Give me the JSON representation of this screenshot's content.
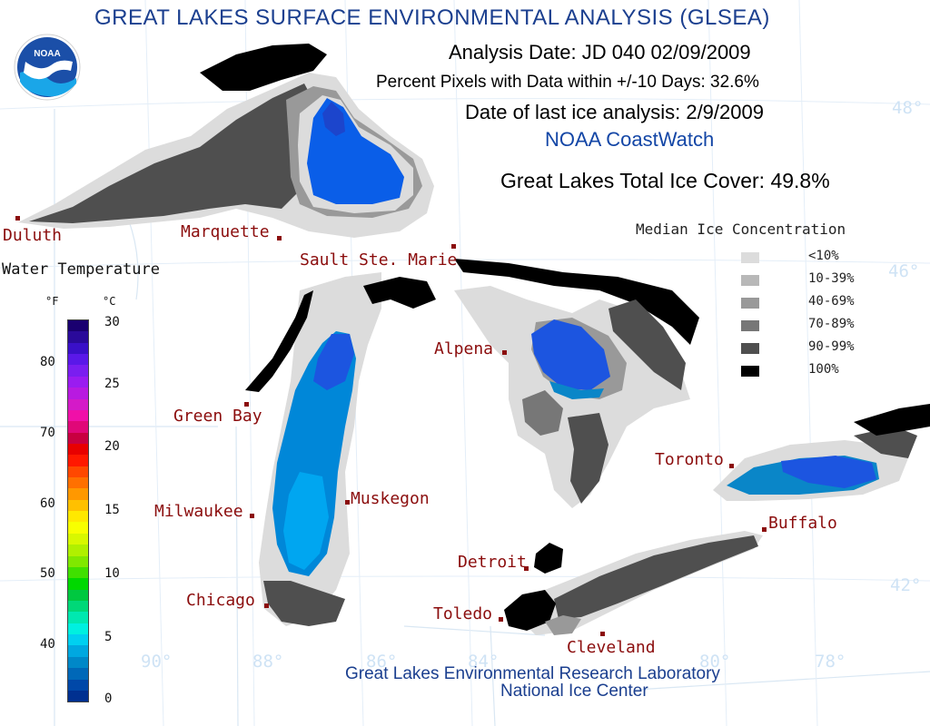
{
  "header": {
    "title": "GREAT LAKES SURFACE ENVIRONMENTAL ANALYSIS (GLSEA)",
    "analysis_date": "Analysis Date:  JD 040 02/09/2009",
    "percent_pixels": "Percent Pixels with Data within +/-10 Days:  32.6%",
    "last_ice": "Date of last ice analysis: 2/9/2009",
    "coastwatch": "NOAA CoastWatch",
    "total_ice": "Great Lakes Total Ice Cover:  49.8%"
  },
  "logo": {
    "text": "NOAA"
  },
  "footer": {
    "line1": "Great Lakes Environmental Research Laboratory",
    "line2": "National Ice Center"
  },
  "ice_legend": {
    "title": "Median Ice Concentration",
    "items": [
      {
        "label": "<10%",
        "color": "#dcdcdc"
      },
      {
        "label": "10-39%",
        "color": "#b8b8b8"
      },
      {
        "label": "40-69%",
        "color": "#999999"
      },
      {
        "label": "70-89%",
        "color": "#777777"
      },
      {
        "label": "90-99%",
        "color": "#4f4f4f"
      },
      {
        "label": "100%",
        "color": "#000000"
      }
    ]
  },
  "water_temp_scale": {
    "title": "Water Temperature",
    "f_unit": "°F",
    "c_unit": "°C",
    "f_ticks": [
      "80",
      "70",
      "60",
      "50",
      "40"
    ],
    "c_ticks": [
      "30",
      "25",
      "20",
      "15",
      "10",
      "5",
      "0"
    ],
    "colors": [
      "#1a0070",
      "#2a0a9a",
      "#3a10c8",
      "#5a18e8",
      "#7a1ef0",
      "#9a1cf0",
      "#b81ae0",
      "#d41ac8",
      "#f010a8",
      "#e00878",
      "#c80040",
      "#e80000",
      "#ff1800",
      "#ff4800",
      "#ff7000",
      "#ff9800",
      "#ffc000",
      "#ffe800",
      "#f8ff00",
      "#d8f800",
      "#b0f000",
      "#80e800",
      "#40e000",
      "#00d800",
      "#00c840",
      "#00d878",
      "#00e8b0",
      "#00f0e0",
      "#00d0f0",
      "#00a8e0",
      "#0088c8",
      "#0068b8",
      "#0048a8",
      "#003090"
    ]
  },
  "cities": [
    {
      "name": "Duluth"
    },
    {
      "name": "Marquette"
    },
    {
      "name": "Sault Ste. Marie"
    },
    {
      "name": "Green Bay"
    },
    {
      "name": "Alpena"
    },
    {
      "name": "Milwaukee"
    },
    {
      "name": "Muskegon"
    },
    {
      "name": "Chicago"
    },
    {
      "name": "Detroit"
    },
    {
      "name": "Toledo"
    },
    {
      "name": "Cleveland"
    },
    {
      "name": "Toronto"
    },
    {
      "name": "Buffalo"
    }
  ],
  "graticule": {
    "latitudes": [
      "48°",
      "46°",
      "42°"
    ],
    "longitudes": [
      "90°",
      "88°",
      "86°",
      "84°",
      "80°",
      "78°"
    ]
  },
  "colors": {
    "title_blue": "#1b3f8f",
    "coastwatch_blue": "#1346a6",
    "city_red": "#8b0d0d",
    "grid": "#cfe3f5"
  }
}
